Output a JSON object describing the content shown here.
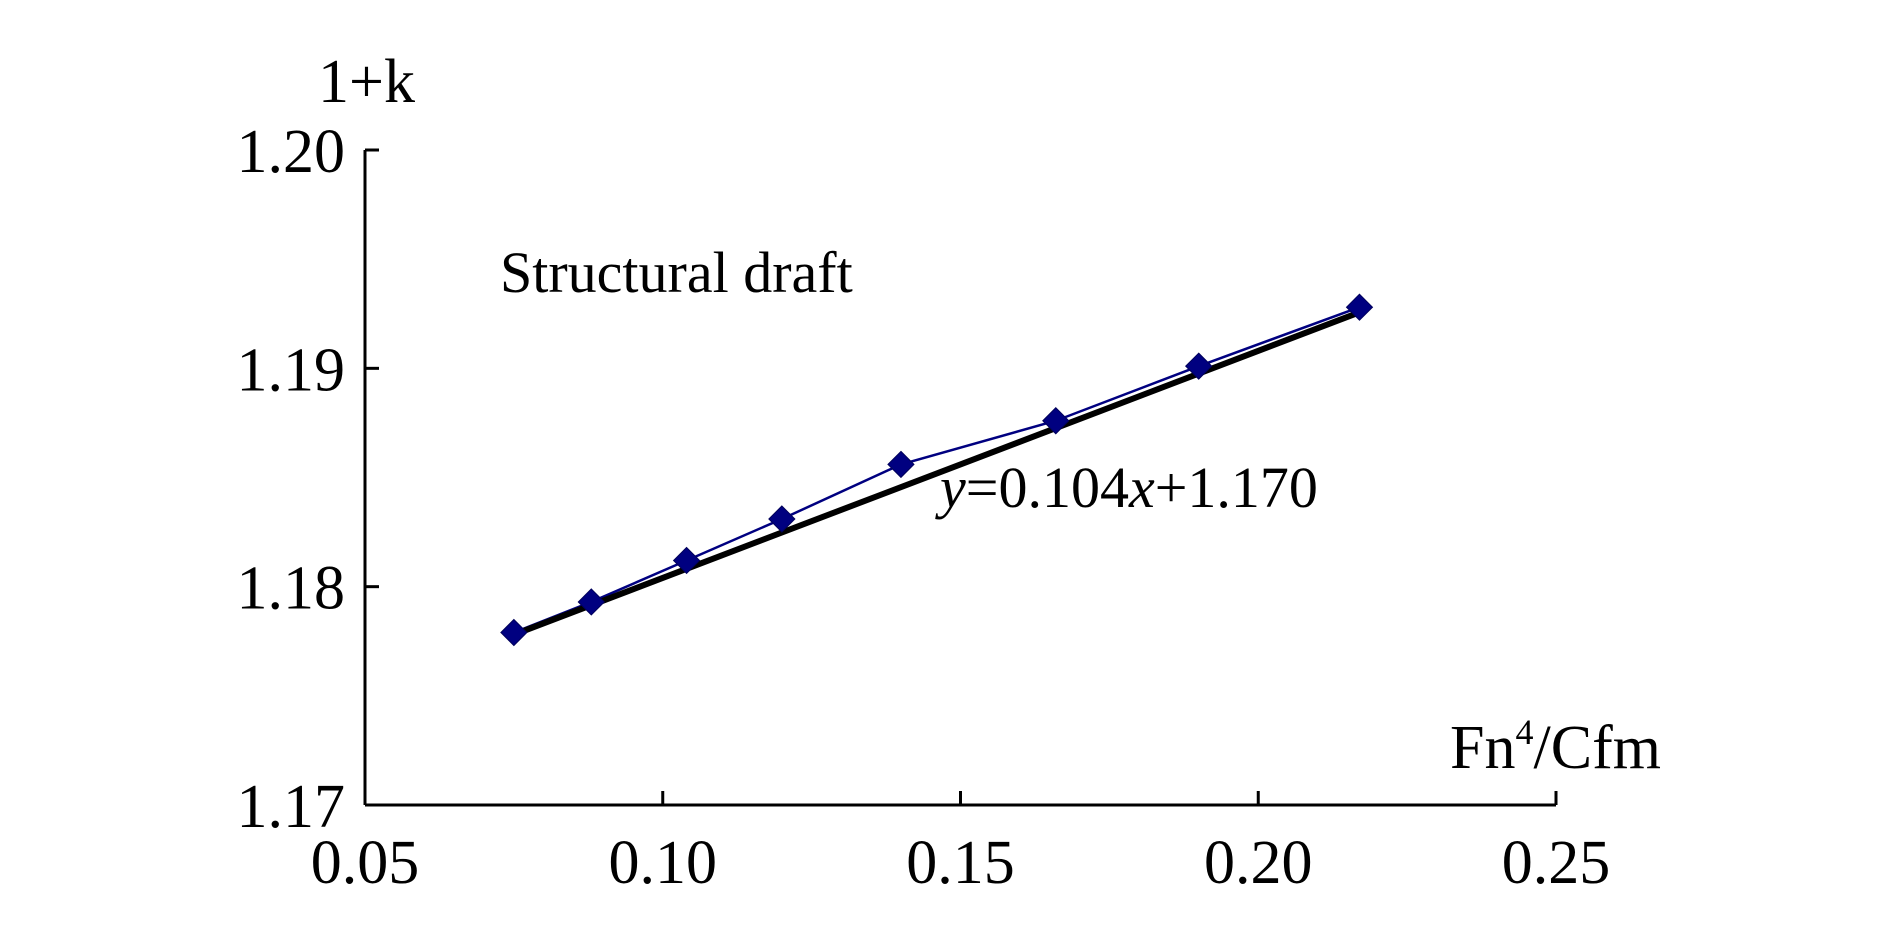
{
  "chart_data": {
    "type": "scatter",
    "title": "",
    "xlabel": {
      "base": "Fn",
      "sup": "4",
      "rest": "/Cfm"
    },
    "ylabel": "1+k",
    "xlim": [
      0.05,
      0.25
    ],
    "ylim": [
      1.17,
      1.2
    ],
    "x_ticks": [
      "0.05",
      "0.10",
      "0.15",
      "0.20",
      "0.25"
    ],
    "y_ticks": [
      "1.17",
      "1.18",
      "1.19",
      "1.20"
    ],
    "grid": false,
    "series": [
      {
        "x": [
          0.075,
          0.088,
          0.104,
          0.12,
          0.14,
          0.166,
          0.19,
          0.217
        ],
        "y": [
          1.1779,
          1.1793,
          1.1812,
          1.1831,
          1.1856,
          1.1876,
          1.1901,
          1.1928
        ],
        "marker": "diamond",
        "connected": true,
        "color": "#000080"
      }
    ],
    "fit": {
      "slope": 0.104,
      "intercept": 1.17,
      "x_range": [
        0.075,
        0.217
      ],
      "color": "#000000"
    },
    "annotations": {
      "condition": "Structural draft",
      "equation": {
        "y": "y",
        "mid": "=0.104",
        "x": "x",
        "end": "+1.170"
      }
    }
  }
}
